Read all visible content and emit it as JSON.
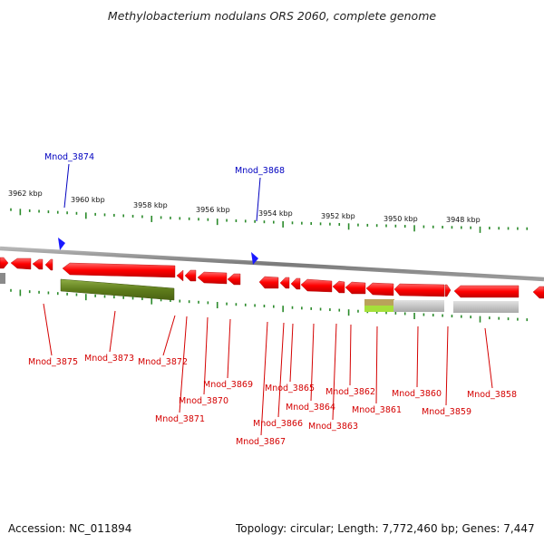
{
  "title": "Methylobacterium nodulans ORS 2060, complete genome",
  "footer": {
    "accession": "Accession: NC_011894",
    "topology": "Topology: circular; Length: 7,772,460 bp; Genes: 7,447"
  },
  "colors": {
    "gene_forward": "#ff0000",
    "gene_label": "#d40000",
    "highlight_label": "#0000c0",
    "ruler_tick": "#2a8a2a",
    "backbone": "#888888",
    "olive_feature": "#6b8e23",
    "grey_feature": "#c0c0c0"
  },
  "ruler_labels": [
    "3962 kbp",
    "3960 kbp",
    "3958 kbp",
    "3956 kbp",
    "3954 kbp",
    "3952 kbp",
    "3950 kbp",
    "3948 kbp"
  ],
  "highlighted_genes": [
    "Mnod_3874",
    "Mnod_3868"
  ],
  "gene_labels": [
    "Mnod_3875",
    "Mnod_3873",
    "Mnod_3872",
    "Mnod_3871",
    "Mnod_3870",
    "Mnod_3869",
    "Mnod_3867",
    "Mnod_3866",
    "Mnod_3865",
    "Mnod_3864",
    "Mnod_3863",
    "Mnod_3862",
    "Mnod_3861",
    "Mnod_3860",
    "Mnod_3859",
    "Mnod_3858"
  ]
}
